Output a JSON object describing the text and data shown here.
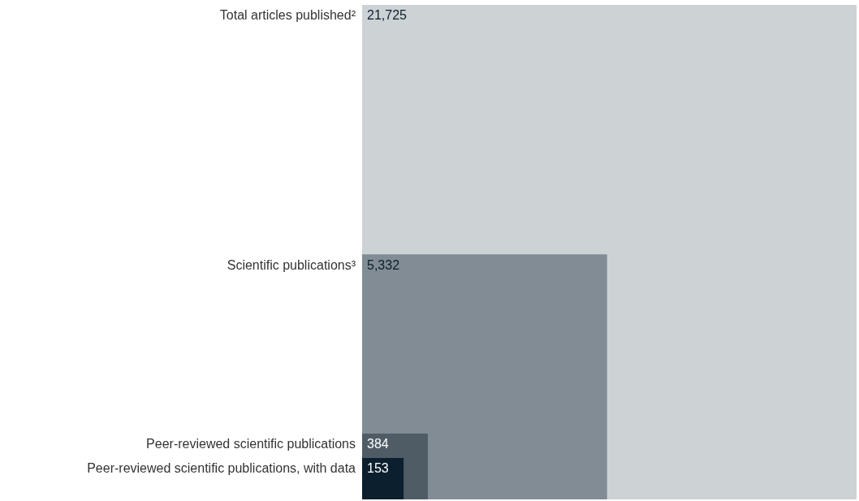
{
  "chart_data": {
    "type": "other",
    "categories": [
      "Total articles published²",
      "Scientific publications³",
      "Peer-reviewed scientific publications",
      "Peer-reviewed scientific publications, with data"
    ],
    "values": [
      21725,
      5332,
      384,
      153
    ],
    "value_labels": [
      "21,725",
      "5,332",
      "384",
      "153"
    ],
    "colors": [
      "#cdd2d5",
      "#818c94",
      "#4f5c66",
      "#0b1f2e"
    ]
  }
}
